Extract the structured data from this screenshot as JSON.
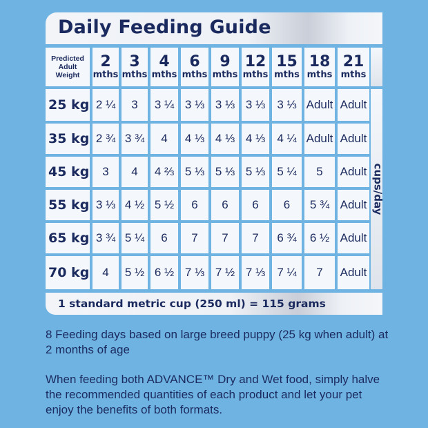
{
  "title": "Daily Feeding Guide",
  "header_label": "Predicted Adult Weight",
  "months": [
    {
      "num": "2",
      "unit": "mths"
    },
    {
      "num": "3",
      "unit": "mths"
    },
    {
      "num": "4",
      "unit": "mths"
    },
    {
      "num": "6",
      "unit": "mths"
    },
    {
      "num": "9",
      "unit": "mths"
    },
    {
      "num": "12",
      "unit": "mths"
    },
    {
      "num": "15",
      "unit": "mths"
    },
    {
      "num": "18",
      "unit": "mths"
    },
    {
      "num": "21",
      "unit": "mths"
    }
  ],
  "rows": [
    {
      "weight": "25 kg",
      "values": [
        "2 ¼",
        "3",
        "3 ¼",
        "3 ⅓",
        "3 ⅓",
        "3 ⅓",
        "3 ⅓",
        "Adult",
        "Adult"
      ]
    },
    {
      "weight": "35 kg",
      "values": [
        "2 ¾",
        "3 ¾",
        "4",
        "4 ⅓",
        "4 ⅓",
        "4 ⅓",
        "4 ¼",
        "Adult",
        "Adult"
      ]
    },
    {
      "weight": "45 kg",
      "values": [
        "3",
        "4",
        "4 ⅔",
        "5 ⅓",
        "5 ⅓",
        "5 ⅓",
        "5 ¼",
        "5",
        "Adult"
      ]
    },
    {
      "weight": "55 kg",
      "values": [
        "3 ⅓",
        "4 ½",
        "5 ½",
        "6",
        "6",
        "6",
        "6",
        "5 ¾",
        "Adult"
      ]
    },
    {
      "weight": "65 kg",
      "values": [
        "3 ¾",
        "5 ¼",
        "6",
        "7",
        "7",
        "7",
        "6 ¾",
        "6 ½",
        "Adult"
      ]
    },
    {
      "weight": "70 kg",
      "values": [
        "4",
        "5 ½",
        "6 ½",
        "7 ⅓",
        "7 ½",
        "7 ⅓",
        "7 ¼",
        "7",
        "Adult"
      ]
    }
  ],
  "side_label": "cups/day",
  "footer": "1 standard metric cup (250 ml) = 115 grams",
  "note1": "8 Feeding days based on large breed puppy (25 kg when adult) at 2 months of age",
  "note2": "When feeding both ADVANCE™ Dry and Wet food, simply halve the recommended quantities of each product and let your pet enjoy the benefits of both formats."
}
